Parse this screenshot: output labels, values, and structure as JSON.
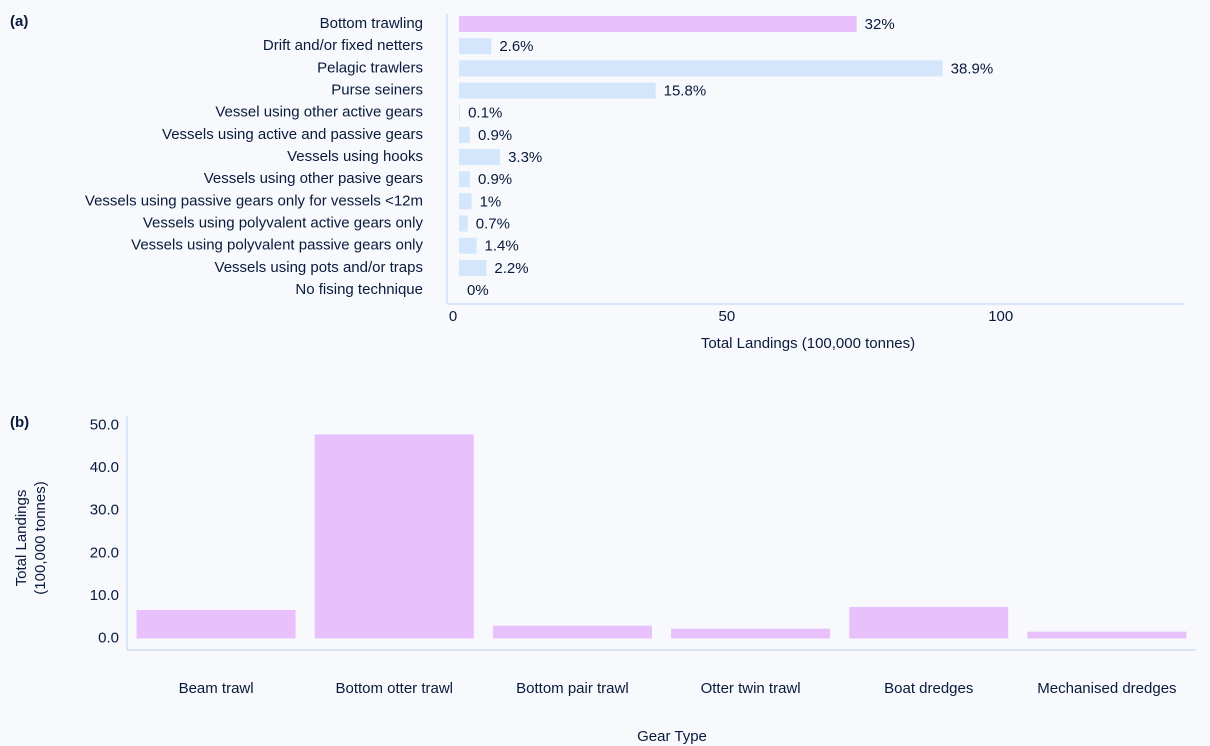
{
  "chart_data": [
    {
      "type": "hbar",
      "label": "(a)",
      "xlabel": "Total Landings (100,000 tonnes)",
      "categories": [
        "Bottom trawling",
        "Drift and/or fixed netters",
        "Pelagic trawlers",
        "Purse seiners",
        "Vessel using other active gears",
        "Vessels using active and passive gears",
        "Vessels using hooks",
        "Vessels using other pasive gears",
        "Vessels using passive gears only for vessels <12m",
        "Vessels using polyvalent active gears only",
        "Vessels using polyvalent passive gears only",
        "Vessels using pots and/or traps",
        "No fising technique"
      ],
      "values": [
        72.6,
        5.9,
        88.3,
        35.9,
        0.2,
        2.0,
        7.5,
        2.0,
        2.3,
        1.6,
        3.2,
        5.0,
        0
      ],
      "value_labels": [
        "32%",
        "2.6%",
        "38.9%",
        "15.8%",
        "0.1%",
        "0.9%",
        "3.3%",
        "0.9%",
        "1%",
        "0.7%",
        "1.4%",
        "2.2%",
        "0%"
      ],
      "colors": [
        "#e8c0fb",
        "#d4e6fb",
        "#d4e6fb",
        "#d4e6fb",
        "#d4e6fb",
        "#d4e6fb",
        "#d4e6fb",
        "#d4e6fb",
        "#d4e6fb",
        "#d4e6fb",
        "#d4e6fb",
        "#d4e6fb",
        "#d4e6fb"
      ],
      "xlim": [
        0,
        132
      ],
      "xticks": [
        0,
        50,
        100
      ]
    },
    {
      "type": "bar",
      "label": "(b)",
      "xlabel": "Gear Type",
      "ylabel": [
        "Total Landings",
        "(100,000 tonnes)"
      ],
      "categories": [
        "Beam trawl",
        "Bottom otter trawl",
        "Bottom pair trawl",
        "Otter twin trawl",
        "Boat dredges",
        "Mechanised dredges"
      ],
      "values": [
        6.7,
        47.9,
        3.0,
        2.3,
        7.4,
        1.6
      ],
      "color": "#e8c0fb",
      "ylim": [
        -2,
        52
      ],
      "yticks": [
        {
          "value": 0,
          "label": "0.0"
        },
        {
          "value": 10,
          "label": "10.0"
        },
        {
          "value": 20,
          "label": "20.0"
        },
        {
          "value": 30,
          "label": "30.0"
        },
        {
          "value": 40,
          "label": "40.0"
        },
        {
          "value": 50,
          "label": "50.0"
        }
      ]
    }
  ]
}
